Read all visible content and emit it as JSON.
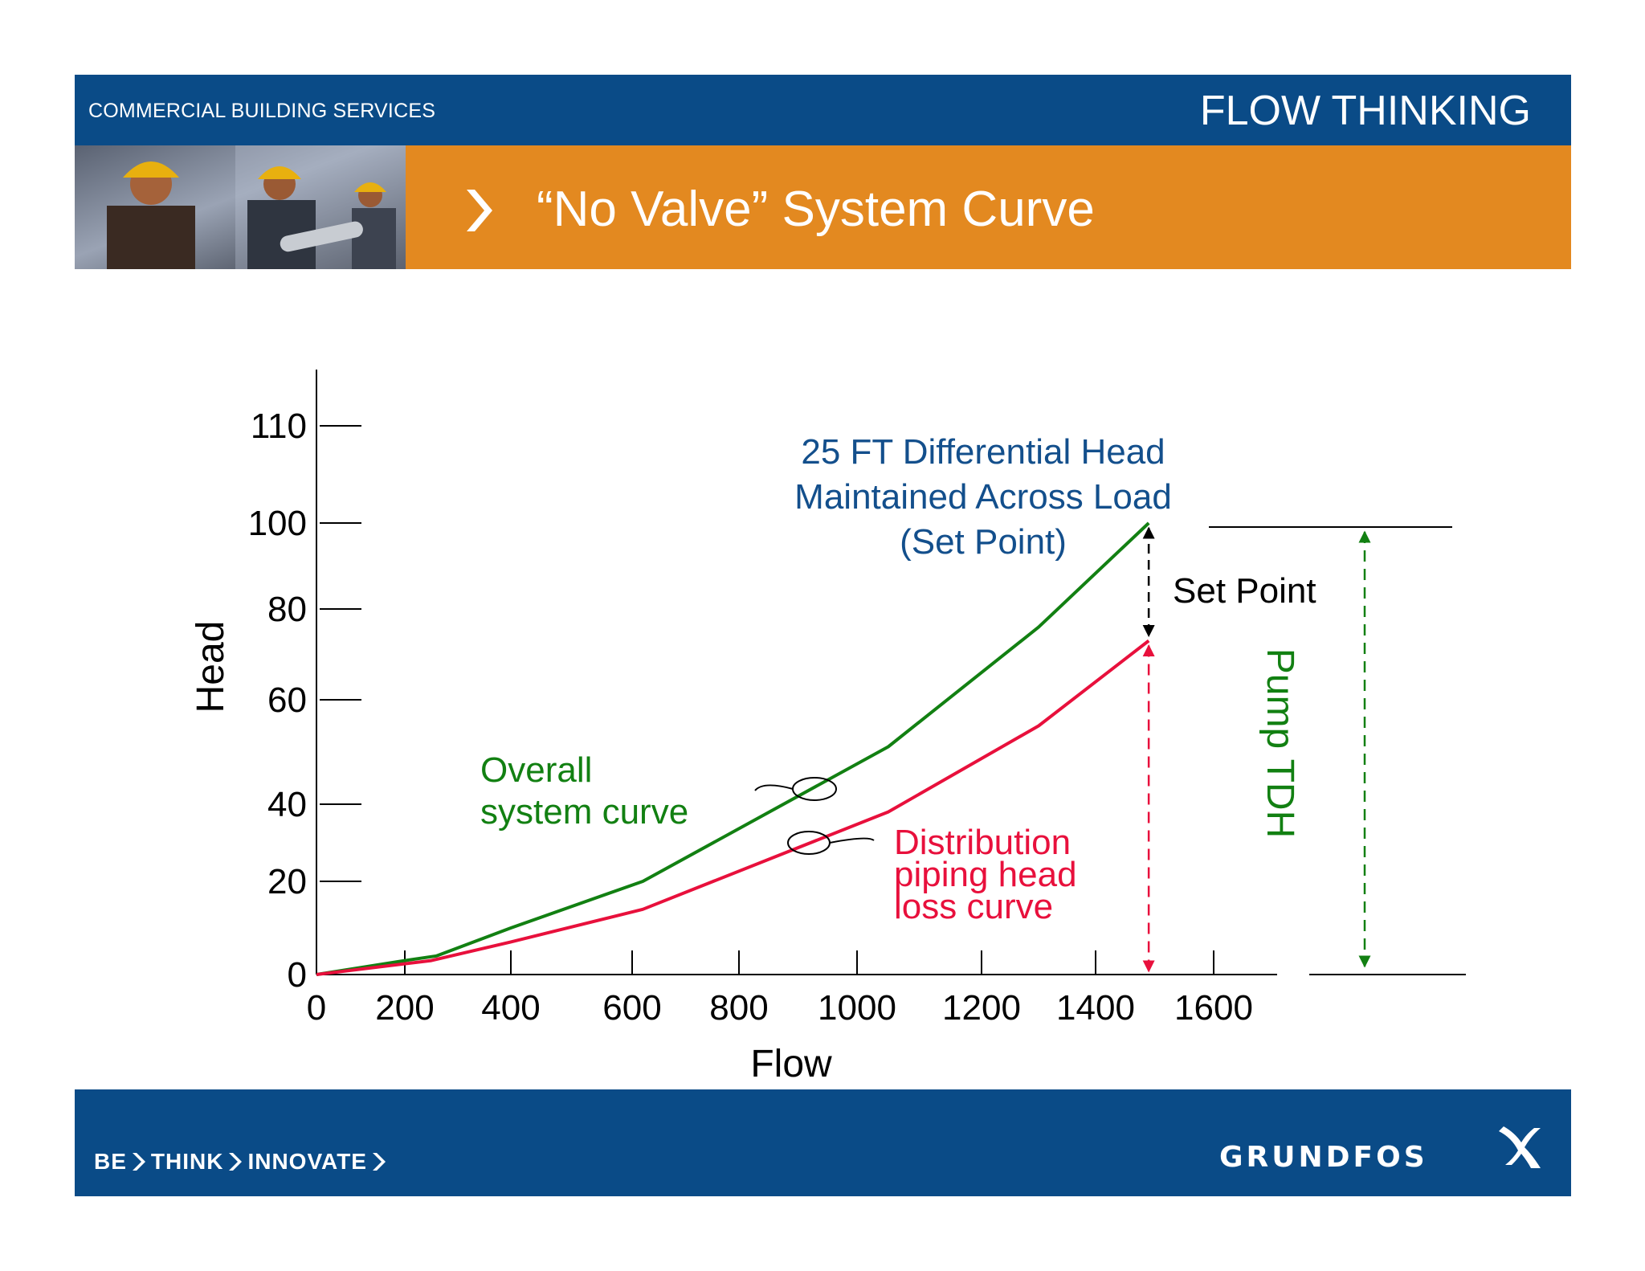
{
  "header": {
    "left_text": "COMMERCIAL BUILDING SERVICES",
    "right_text": "FLOW THINKING"
  },
  "title": "“No Valve” System Curve",
  "footer": {
    "tagline_words": [
      "BE",
      "THINK",
      "INNOVATE"
    ],
    "brand": "GRUNDFOS"
  },
  "colors": {
    "navy": "#0a4b87",
    "orange": "#e38920",
    "green": "#128012",
    "red": "#e8103c",
    "blue_text": "#134f8c"
  },
  "chart_data": {
    "type": "line",
    "xlabel": "Flow",
    "ylabel": "Head",
    "x_ticks": [
      0,
      200,
      400,
      600,
      800,
      1000,
      1200,
      1400,
      1600
    ],
    "y_ticks": [
      0,
      20,
      40,
      60,
      80,
      100,
      110
    ],
    "xlim": [
      0,
      1680
    ],
    "ylim": [
      0,
      118
    ],
    "series": [
      {
        "name": "Overall system curve",
        "color": "#128012",
        "x": [
          0,
          200,
          260,
          400,
          620,
          1050,
          1300,
          1490
        ],
        "y": [
          0,
          3,
          4,
          10,
          20,
          51,
          76,
          100
        ]
      },
      {
        "name": "Distribution piping head loss curve",
        "color": "#e8103c",
        "x": [
          0,
          250,
          400,
          620,
          1050,
          1300,
          1490
        ],
        "y": [
          0,
          3,
          7,
          14,
          38,
          55,
          73
        ]
      }
    ],
    "annotations": {
      "set_point_label": "Set Point",
      "pump_tdh_label": "Pump TDH",
      "diff_head_lines": [
        "25 FT Differential Head",
        "Maintained Across Load",
        "(Set Point)"
      ],
      "overall_label_lines": [
        "Overall",
        "system curve"
      ],
      "distribution_label_lines": [
        "Distribution",
        "piping head",
        "loss curve"
      ]
    }
  }
}
